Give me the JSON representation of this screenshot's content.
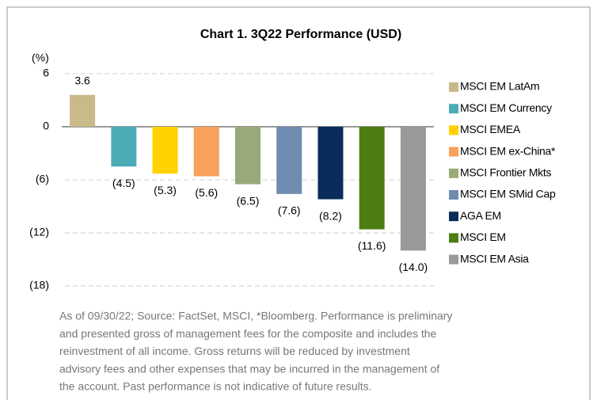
{
  "chart_data": {
    "type": "bar",
    "title": "Chart 1. 3Q22 Performance (USD)",
    "y_label": "(%)",
    "categories": [
      "MSCI EM LatAm",
      "MSCI EM Currency",
      "MSCI EMEA",
      "MSCI EM ex-China*",
      "MSCI Frontier Mkts",
      "MSCI EM SMid Cap",
      "AGA EM",
      "MSCI EM",
      "MSCI EM Asia"
    ],
    "values": [
      3.6,
      -4.5,
      -5.3,
      -5.6,
      -6.5,
      -7.6,
      -8.2,
      -11.6,
      -14.0
    ],
    "value_labels": [
      "3.6",
      "(4.5)",
      "(5.3)",
      "(5.6)",
      "(6.5)",
      "(7.6)",
      "(8.2)",
      "(11.6)",
      "(14.0)"
    ],
    "colors": [
      "#c9b98b",
      "#4bacb8",
      "#ffd200",
      "#f9a05a",
      "#9aa97a",
      "#6f8bb0",
      "#0a2c5a",
      "#4e7d14",
      "#999999"
    ],
    "ylim": [
      -18,
      6
    ],
    "yticks": [
      6,
      0,
      {
        "value": -6,
        "label": "(6)"
      },
      {
        "value": -12,
        "label": "(12)"
      },
      {
        "value": -18,
        "label": "(18)"
      }
    ],
    "grid": true,
    "legend": "right",
    "footnote": [
      "As of 09/30/22; Source: FactSet, MSCI, *Bloomberg. Performance is preliminary",
      "and presented gross of management fees for the composite and includes the",
      "reinvestment of all income. Gross returns will be reduced by investment",
      "advisory fees and other expenses that may be incurred in the management of",
      "the account. Past performance is not indicative of future results."
    ]
  }
}
